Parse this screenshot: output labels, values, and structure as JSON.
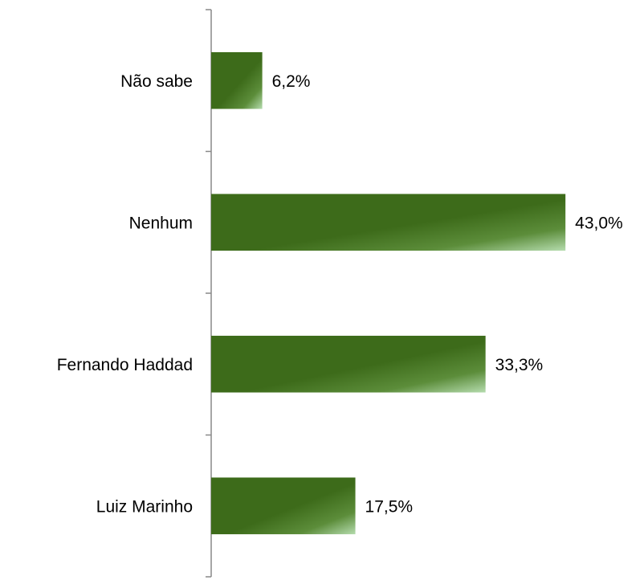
{
  "chart_data": {
    "type": "barh",
    "categories": [
      "Não sabe",
      "Nenhum",
      "Fernando Haddad",
      "Luiz Marinho"
    ],
    "values": [
      6.2,
      43.0,
      33.3,
      17.5
    ],
    "value_labels": [
      "6,2%",
      "43,0%",
      "33,3%",
      "17,5%"
    ],
    "color": "#3d6b1a",
    "xlim": [
      0,
      50
    ]
  }
}
